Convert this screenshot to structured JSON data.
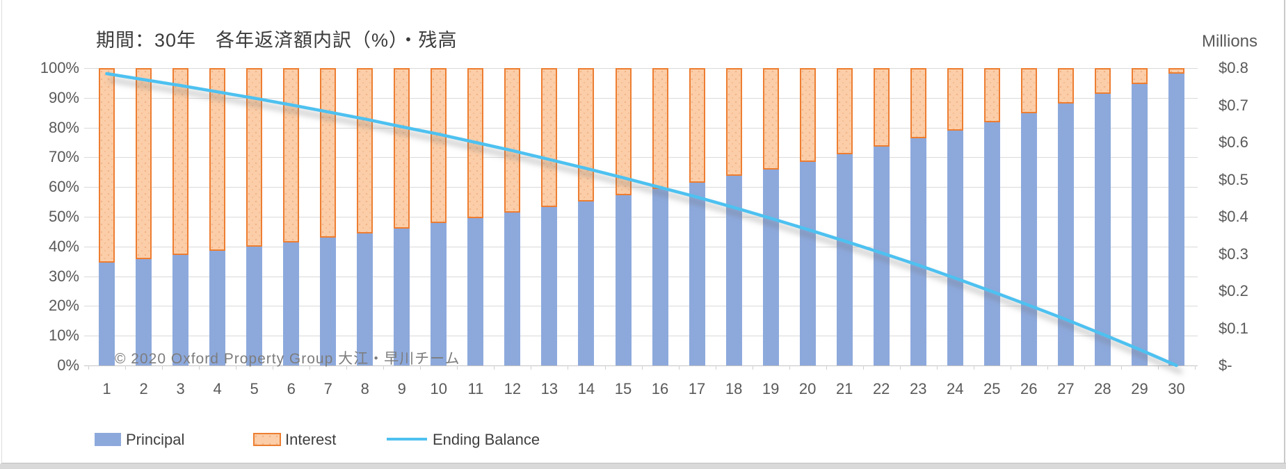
{
  "title": "期間：30年　各年返済額内訳（%）・残高",
  "right_axis_title": "Millions",
  "watermark": "© 2020 Oxford Property Group 大江・早川チーム",
  "legend": {
    "principal_label": "Principal",
    "interest_label": "Interest",
    "ending_balance_label": "Ending Balance"
  },
  "colors": {
    "principal_bar": "#8da9dc",
    "interest_fill": "#fbcea9",
    "interest_border": "#ed7d31",
    "ending_balance_line": "#4ec1f0",
    "gridline": "#d9d9d9",
    "axis_text": "#595959",
    "title_text": "#3a3a3a",
    "watermark_text": "#7d7d7d"
  },
  "chart_data": {
    "type": "bar",
    "subtype": "stacked-100pct-columns-with-line-overlay",
    "title": "期間：30年　各年返済額内訳（%）・残高",
    "categories": [
      1,
      2,
      3,
      4,
      5,
      6,
      7,
      8,
      9,
      10,
      11,
      12,
      13,
      14,
      15,
      16,
      17,
      18,
      19,
      20,
      21,
      22,
      23,
      24,
      25,
      26,
      27,
      28,
      29,
      30
    ],
    "xlabel": "",
    "series": [
      {
        "name": "Principal",
        "type": "bar",
        "axis": "left",
        "unit": "%",
        "values": [
          34.6,
          35.8,
          37.2,
          38.5,
          39.9,
          41.4,
          42.9,
          44.5,
          46.1,
          47.8,
          49.5,
          51.4,
          53.2,
          55.2,
          57.2,
          59.3,
          61.5,
          63.7,
          66.0,
          68.5,
          71.0,
          73.6,
          76.3,
          79.0,
          81.9,
          84.9,
          88.0,
          91.3,
          94.6,
          98.1
        ]
      },
      {
        "name": "Interest",
        "type": "bar",
        "axis": "left",
        "unit": "%",
        "values": [
          65.4,
          64.2,
          62.8,
          61.5,
          60.1,
          58.6,
          57.1,
          55.5,
          53.9,
          52.2,
          50.5,
          48.6,
          46.8,
          44.8,
          42.8,
          40.7,
          38.5,
          36.3,
          34.0,
          31.5,
          29.0,
          26.4,
          23.7,
          21.0,
          18.1,
          15.1,
          12.0,
          8.7,
          5.4,
          1.9
        ]
      },
      {
        "name": "Ending Balance",
        "type": "line",
        "axis": "right",
        "unit": "$ Millions",
        "values": [
          0.785,
          0.769,
          0.753,
          0.736,
          0.719,
          0.701,
          0.682,
          0.663,
          0.642,
          0.622,
          0.6,
          0.578,
          0.554,
          0.53,
          0.505,
          0.479,
          0.453,
          0.425,
          0.396,
          0.366,
          0.335,
          0.303,
          0.27,
          0.235,
          0.199,
          0.162,
          0.124,
          0.084,
          0.043,
          0.0
        ]
      }
    ],
    "left_axis": {
      "min": 0,
      "max": 100,
      "ticks": [
        "100%",
        "90%",
        "80%",
        "70%",
        "60%",
        "50%",
        "40%",
        "30%",
        "20%",
        "10%",
        "0%"
      ]
    },
    "right_axis": {
      "min": 0,
      "max": 0.8,
      "title": "Millions",
      "ticks": [
        "$0.8",
        "$0.7",
        "$0.6",
        "$0.5",
        "$0.4",
        "$0.3",
        "$0.2",
        "$0.1",
        "$-"
      ]
    },
    "grid": true,
    "legend_position": "bottom-left"
  }
}
